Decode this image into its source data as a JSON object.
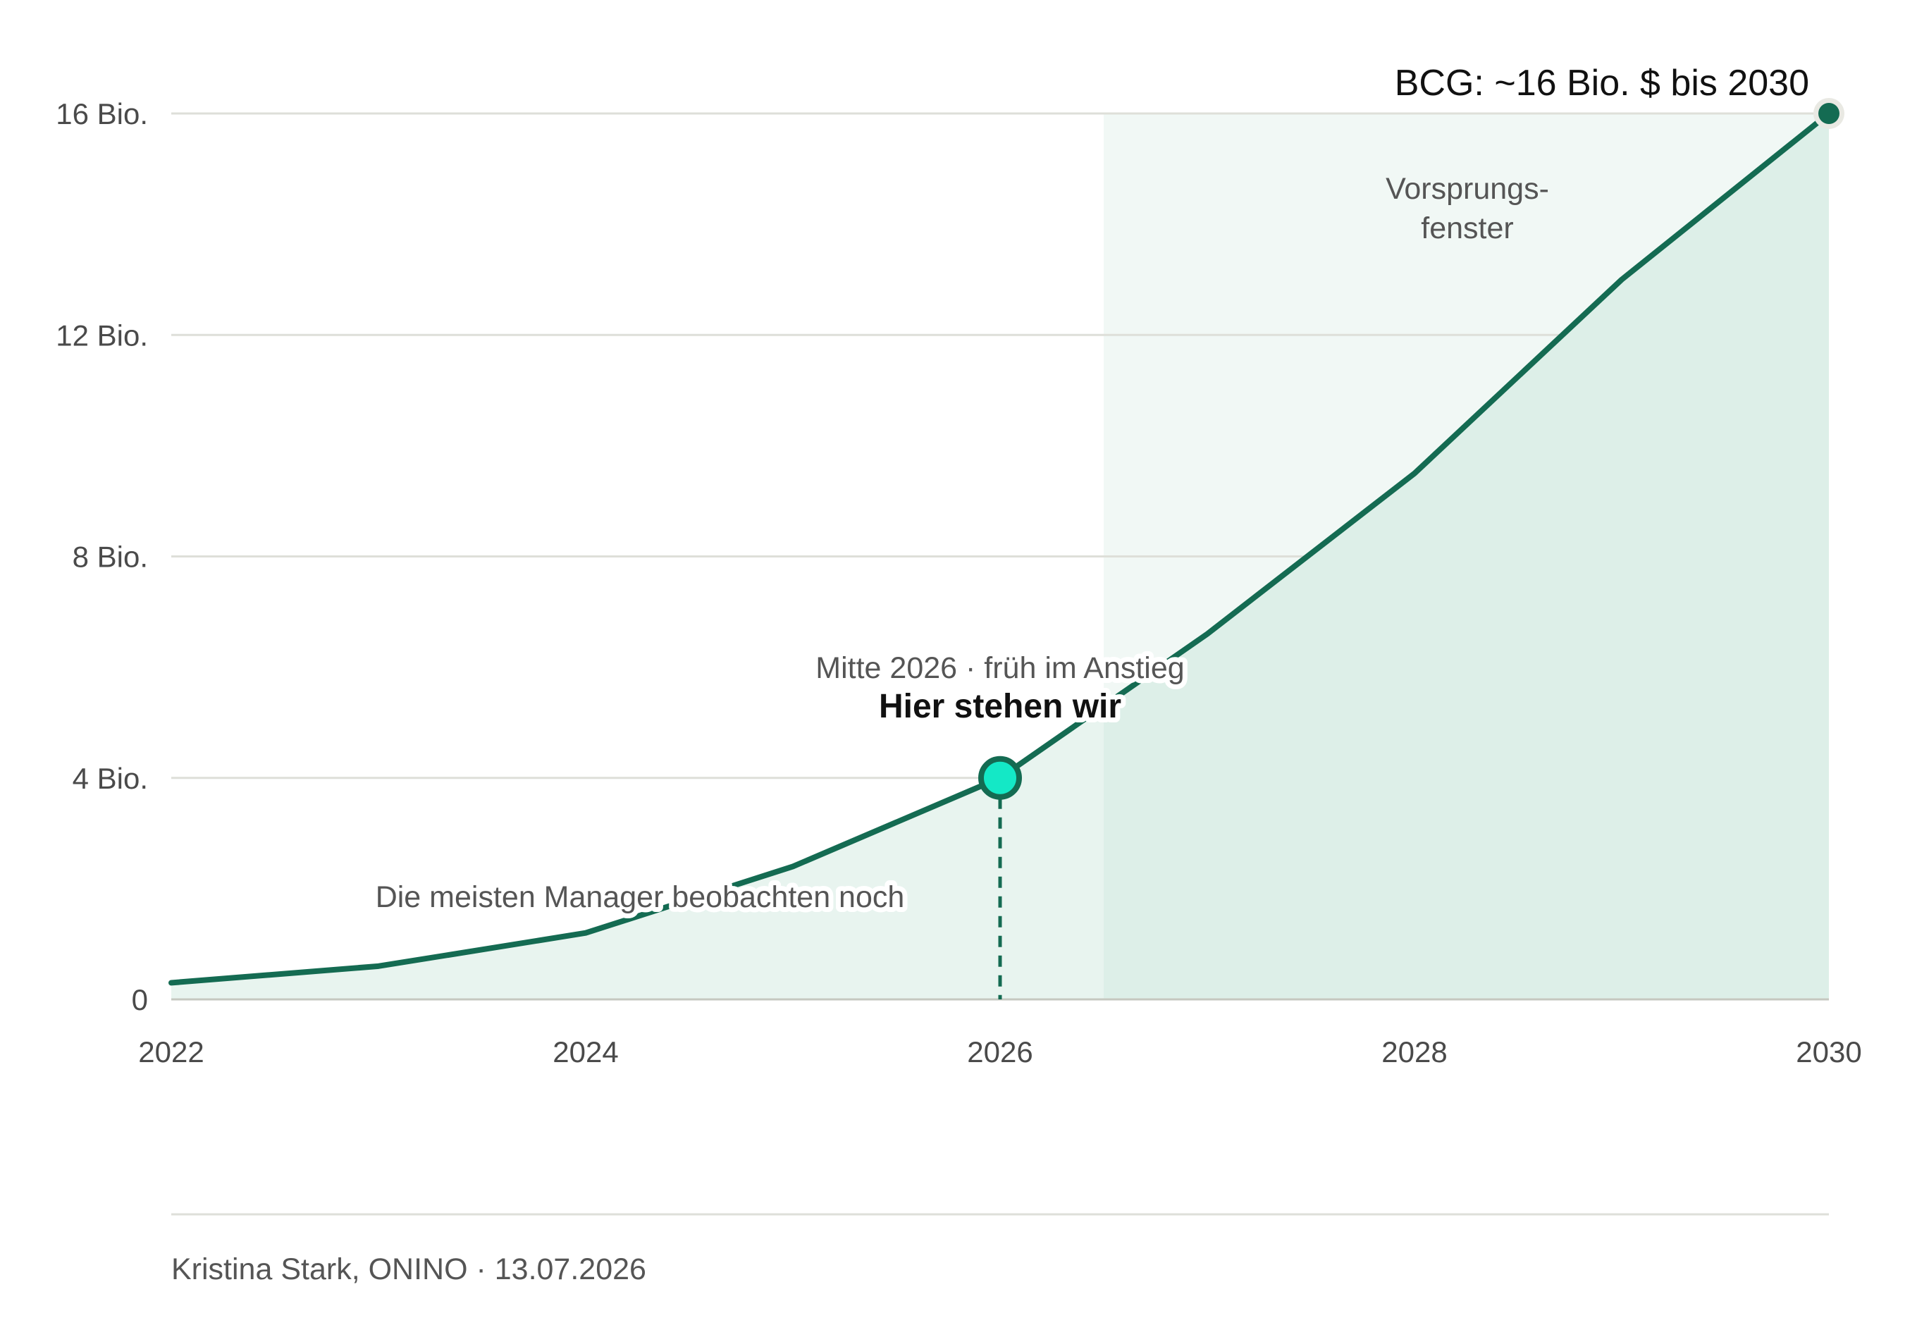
{
  "colors": {
    "line": "#146b52",
    "area": "#e8f4ef",
    "window_bg": "#f1f8f5",
    "window_area": "#ddefe8",
    "marker_fill": "#14e8c6",
    "grid": "#dedfd9",
    "baseline": "#c6c8c0",
    "text": "#4a4a4a"
  },
  "chart_data": {
    "type": "area",
    "title": "",
    "xlabel": "",
    "ylabel": "",
    "xlim": [
      2022,
      2030
    ],
    "ylim": [
      0,
      16
    ],
    "grid": true,
    "x_ticks": [
      {
        "value": 2022,
        "label": "2022"
      },
      {
        "value": 2024,
        "label": "2024"
      },
      {
        "value": 2026,
        "label": "2026"
      },
      {
        "value": 2028,
        "label": "2028"
      },
      {
        "value": 2030,
        "label": "2030"
      }
    ],
    "y_ticks": [
      {
        "value": 0,
        "label": "0"
      },
      {
        "value": 4,
        "label": "4 Bio."
      },
      {
        "value": 8,
        "label": "8 Bio."
      },
      {
        "value": 12,
        "label": "12 Bio."
      },
      {
        "value": 16,
        "label": "16 Bio."
      }
    ],
    "series": [
      {
        "x": [
          2022,
          2023,
          2024,
          2025,
          2026,
          2027,
          2028,
          2029,
          2030
        ],
        "y": [
          0.3,
          0.6,
          1.2,
          2.4,
          4.0,
          6.6,
          9.5,
          13.0,
          16.0
        ]
      }
    ],
    "highlight_window": {
      "x_start": 2026.5,
      "x_end": 2030,
      "label_line1": "Vorsprungs-",
      "label_line2": "fenster"
    },
    "marker": {
      "x": 2026,
      "y": 4.0,
      "label_sub": "Mitte 2026 · früh im Anstieg",
      "label_main": "Hier stehen wir"
    },
    "endpoint": {
      "x": 2030,
      "y": 16.0,
      "label": "BCG: ~16 Bio. $ bis 2030"
    },
    "early_annotation": "Die meisten Manager beobachten noch"
  },
  "credit": "Kristina Stark, ONINO · 13.07.2026"
}
